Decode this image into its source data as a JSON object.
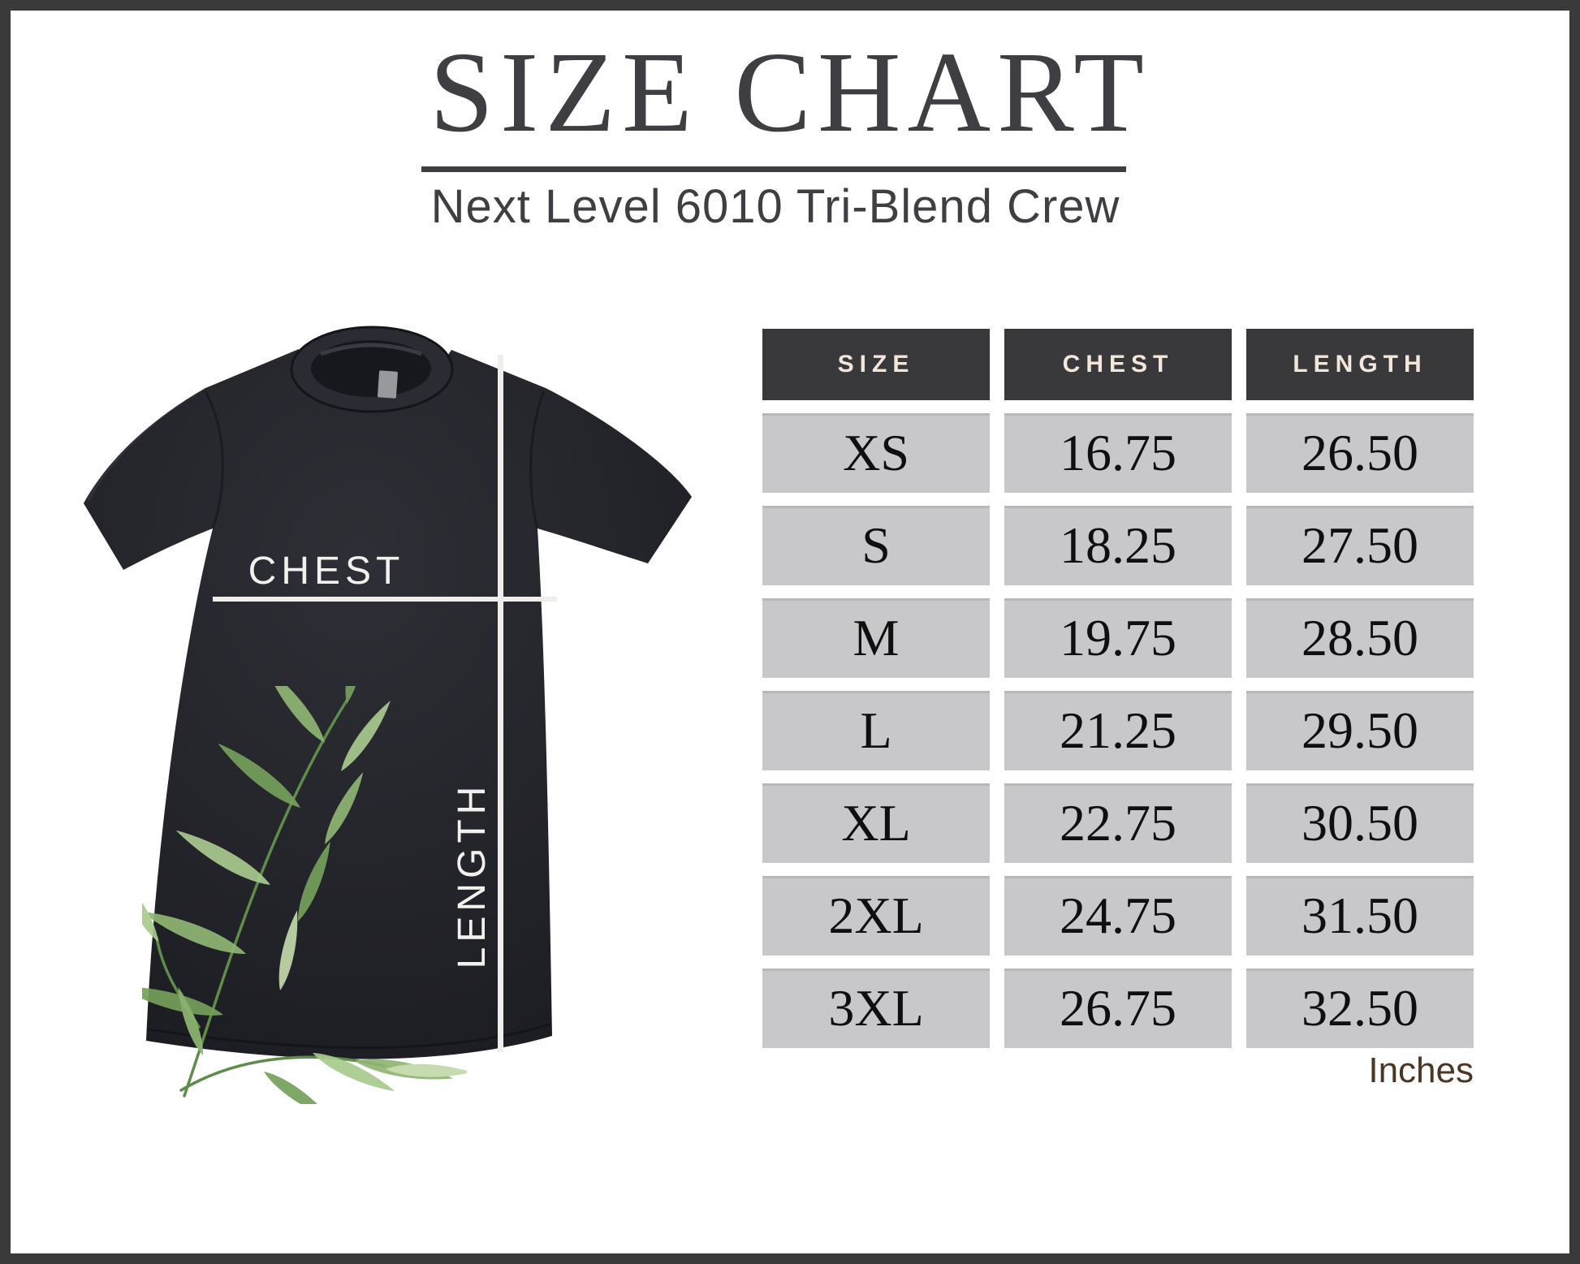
{
  "header": {
    "title": "SIZE CHART",
    "subtitle": "Next Level 6010 Tri-Blend Crew"
  },
  "shirt": {
    "chest_label": "CHEST",
    "length_label": "LENGTH"
  },
  "chart_data": {
    "type": "table",
    "title": "SIZE CHART",
    "subtitle": "Next Level 6010 Tri-Blend Crew",
    "units": "Inches",
    "columns": [
      "SIZE",
      "CHEST",
      "LENGTH"
    ],
    "rows": [
      [
        "XS",
        "16.75",
        "26.50"
      ],
      [
        "S",
        "18.25",
        "27.50"
      ],
      [
        "M",
        "19.75",
        "28.50"
      ],
      [
        "L",
        "21.25",
        "29.50"
      ],
      [
        "XL",
        "22.75",
        "30.50"
      ],
      [
        "2XL",
        "24.75",
        "31.50"
      ],
      [
        "3XL",
        "26.75",
        "32.50"
      ]
    ]
  },
  "colors": {
    "frame": "#3a3a3a",
    "heading_text": "#3f3e43",
    "table_header_bg": "#39393b",
    "table_header_text": "#f2e7da",
    "table_row_bg": "#c8c8cb",
    "table_row_text": "#0f0f10",
    "units_text": "#4d3526",
    "measure_line": "#efeeea",
    "shirt_body": "#26272d",
    "greenery_green": "#8fb573"
  }
}
